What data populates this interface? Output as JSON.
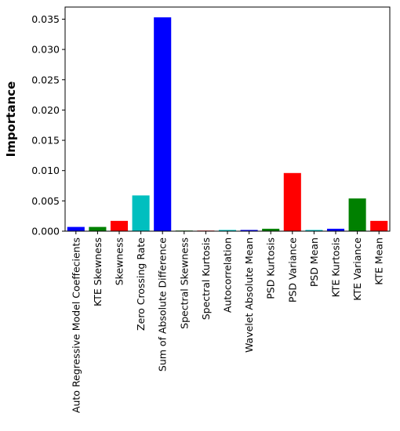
{
  "chart_data": {
    "type": "bar",
    "title": "",
    "xlabel": "",
    "ylabel": "Importance",
    "ylim": [
      0,
      0.037
    ],
    "yticks": [
      "0.000",
      "0.005",
      "0.010",
      "0.015",
      "0.020",
      "0.025",
      "0.030",
      "0.035"
    ],
    "ytick_values": [
      0,
      0.005,
      0.01,
      0.015,
      0.02,
      0.025,
      0.03,
      0.035
    ],
    "grid": false,
    "categories": [
      "Auto Regressive Model Coeffecients",
      "KTE Skewness",
      "Skewness",
      "Zero Crossing Rate",
      "Sum of Absolute Difference",
      "Spectral Skewness",
      "Spectral Kurtosis",
      "Autocorrelation",
      "Wavelet Absolute Mean",
      "PSD Kurtosis",
      "PSD Variance",
      "PSD Mean",
      "KTE Kurtosis",
      "KTE Variance",
      "KTE Mean"
    ],
    "values": [
      0.0007,
      0.0007,
      0.0017,
      0.0059,
      0.0353,
      0.0001,
      0.0001,
      0.0002,
      0.0002,
      0.0004,
      0.0096,
      0.0002,
      0.0004,
      0.0054,
      0.0017
    ],
    "colors": [
      "#0000ff",
      "#008000",
      "#ff0000",
      "#00bfbf",
      "#0000ff",
      "#008000",
      "#ff0000",
      "#00bfbf",
      "#0000ff",
      "#008000",
      "#ff0000",
      "#00bfbf",
      "#0000ff",
      "#008000",
      "#ff0000"
    ]
  }
}
